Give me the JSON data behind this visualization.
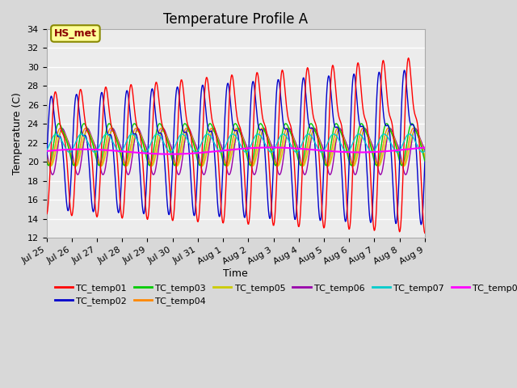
{
  "title": "Temperature Profile A",
  "xlabel": "Time",
  "ylabel": "Temperature (C)",
  "ylim": [
    12,
    34
  ],
  "yticks": [
    12,
    14,
    16,
    18,
    20,
    22,
    24,
    26,
    28,
    30,
    32,
    34
  ],
  "background_color": "#d8d8d8",
  "plot_bg_color": "#ececec",
  "series_colors": {
    "TC_temp01": "#ff0000",
    "TC_temp02": "#0000cc",
    "TC_temp03": "#00cc00",
    "TC_temp04": "#ff8800",
    "TC_temp05": "#cccc00",
    "TC_temp06": "#9900aa",
    "TC_temp07": "#00cccc",
    "TC_temp08": "#ff00ff"
  },
  "legend_label": "HS_met",
  "legend_box_color": "#ffff99",
  "legend_box_edge_color": "#888800",
  "xtick_labels": [
    "Jul 25",
    "Jul 26",
    "Jul 27",
    "Jul 28",
    "Jul 29",
    "Jul 30",
    "Jul 31",
    "Aug 1",
    "Aug 2",
    "Aug 3",
    "Aug 4",
    "Aug 5",
    "Aug 6",
    "Aug 7",
    "Aug 8",
    "Aug 9"
  ],
  "xtick_positions": [
    0,
    1,
    2,
    3,
    4,
    5,
    6,
    7,
    8,
    9,
    10,
    11,
    12,
    13,
    14,
    15
  ],
  "title_fontsize": 12,
  "axis_label_fontsize": 9,
  "tick_fontsize": 8,
  "legend_fontsize": 8
}
